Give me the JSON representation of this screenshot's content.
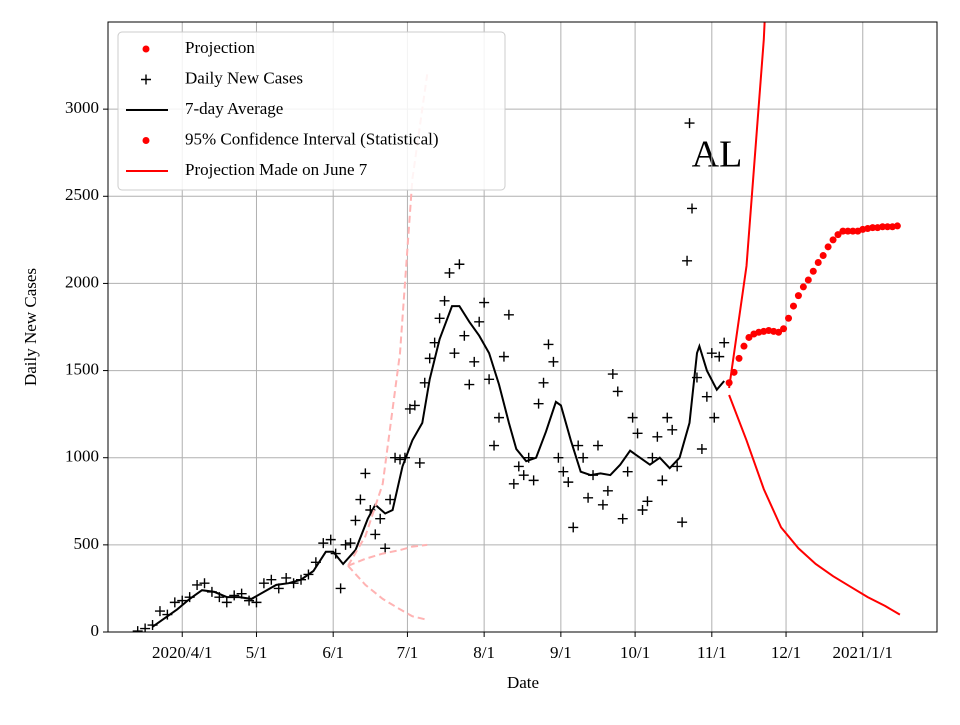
{
  "chart_data": {
    "type": "scatter",
    "xlabel": "Date",
    "ylabel": "Daily New Cases",
    "annotation": "AL",
    "xlim": [
      "2020-03-02",
      "2021-01-31"
    ],
    "xticks": [
      {
        "value": "2020-04-01",
        "label": "2020/4/1"
      },
      {
        "value": "2020-05-01",
        "label": "5/1"
      },
      {
        "value": "2020-06-01",
        "label": "6/1"
      },
      {
        "value": "2020-07-01",
        "label": "7/1"
      },
      {
        "value": "2020-08-01",
        "label": "8/1"
      },
      {
        "value": "2020-09-01",
        "label": "9/1"
      },
      {
        "value": "2020-10-01",
        "label": "10/1"
      },
      {
        "value": "2020-11-01",
        "label": "11/1"
      },
      {
        "value": "2020-12-01",
        "label": "12/1"
      },
      {
        "value": "2021-01-01",
        "label": "2021/1/1"
      }
    ],
    "ylim": [
      0,
      3500
    ],
    "yticks": [
      0,
      500,
      1000,
      1500,
      2000,
      2500,
      3000
    ],
    "grid": true,
    "legend": "upper left",
    "series": [
      {
        "name": "Projection",
        "color": "#ff0000",
        "marker": "dot",
        "x": [
          "2020-11-08",
          "2020-11-10",
          "2020-11-12",
          "2020-11-14",
          "2020-11-16",
          "2020-11-18",
          "2020-11-20",
          "2020-11-22",
          "2020-11-24",
          "2020-11-26",
          "2020-11-28",
          "2020-11-30",
          "2020-12-02",
          "2020-12-04",
          "2020-12-06",
          "2020-12-08",
          "2020-12-10",
          "2020-12-12",
          "2020-12-14",
          "2020-12-16",
          "2020-12-18",
          "2020-12-20",
          "2020-12-22",
          "2020-12-24",
          "2020-12-26",
          "2020-12-28",
          "2020-12-30",
          "2021-01-01",
          "2021-01-03",
          "2021-01-05",
          "2021-01-07",
          "2021-01-09",
          "2021-01-11",
          "2021-01-13",
          "2021-01-15"
        ],
        "values": [
          1430,
          1490,
          1570,
          1640,
          1690,
          1710,
          1720,
          1725,
          1730,
          1725,
          1720,
          1740,
          1800,
          1870,
          1930,
          1980,
          2020,
          2070,
          2120,
          2160,
          2210,
          2250,
          2280,
          2300,
          2300,
          2300,
          2300,
          2310,
          2315,
          2320,
          2320,
          2325,
          2325,
          2325,
          2330
        ]
      },
      {
        "name": "Daily New Cases",
        "color": "#000000",
        "marker": "plus",
        "x": [
          "2020-03-14",
          "2020-03-17",
          "2020-03-20",
          "2020-03-23",
          "2020-03-26",
          "2020-03-29",
          "2020-04-01",
          "2020-04-04",
          "2020-04-07",
          "2020-04-10",
          "2020-04-13",
          "2020-04-16",
          "2020-04-19",
          "2020-04-22",
          "2020-04-25",
          "2020-04-28",
          "2020-05-01",
          "2020-05-04",
          "2020-05-07",
          "2020-05-10",
          "2020-05-13",
          "2020-05-16",
          "2020-05-19",
          "2020-05-22",
          "2020-05-25",
          "2020-05-28",
          "2020-05-31",
          "2020-06-02",
          "2020-06-04",
          "2020-06-06",
          "2020-06-08",
          "2020-06-10",
          "2020-06-12",
          "2020-06-14",
          "2020-06-16",
          "2020-06-18",
          "2020-06-20",
          "2020-06-22",
          "2020-06-24",
          "2020-06-26",
          "2020-06-28",
          "2020-06-30",
          "2020-07-02",
          "2020-07-04",
          "2020-07-06",
          "2020-07-08",
          "2020-07-10",
          "2020-07-12",
          "2020-07-14",
          "2020-07-16",
          "2020-07-18",
          "2020-07-20",
          "2020-07-22",
          "2020-07-24",
          "2020-07-26",
          "2020-07-28",
          "2020-07-30",
          "2020-08-01",
          "2020-08-03",
          "2020-08-05",
          "2020-08-07",
          "2020-08-09",
          "2020-08-11",
          "2020-08-13",
          "2020-08-15",
          "2020-08-17",
          "2020-08-19",
          "2020-08-21",
          "2020-08-23",
          "2020-08-25",
          "2020-08-27",
          "2020-08-29",
          "2020-08-31",
          "2020-09-02",
          "2020-09-04",
          "2020-09-06",
          "2020-09-08",
          "2020-09-10",
          "2020-09-12",
          "2020-09-14",
          "2020-09-16",
          "2020-09-18",
          "2020-09-20",
          "2020-09-22",
          "2020-09-24",
          "2020-09-26",
          "2020-09-28",
          "2020-09-30",
          "2020-10-02",
          "2020-10-04",
          "2020-10-06",
          "2020-10-08",
          "2020-10-10",
          "2020-10-12",
          "2020-10-14",
          "2020-10-16",
          "2020-10-18",
          "2020-10-20",
          "2020-10-22",
          "2020-10-23",
          "2020-10-24",
          "2020-10-26",
          "2020-10-28",
          "2020-10-30",
          "2020-11-01",
          "2020-11-02",
          "2020-11-04",
          "2020-11-06"
        ],
        "values": [
          5,
          20,
          40,
          120,
          100,
          170,
          180,
          200,
          270,
          280,
          230,
          200,
          170,
          210,
          220,
          180,
          170,
          280,
          300,
          250,
          310,
          280,
          300,
          330,
          400,
          510,
          530,
          450,
          250,
          500,
          510,
          640,
          760,
          910,
          700,
          560,
          650,
          480,
          760,
          1000,
          990,
          1000,
          1280,
          1300,
          970,
          1430,
          1570,
          1660,
          1800,
          1900,
          2060,
          1600,
          2110,
          1700,
          1420,
          1550,
          1780,
          1890,
          1450,
          1070,
          1230,
          1580,
          1820,
          850,
          950,
          900,
          1000,
          870,
          1310,
          1430,
          1650,
          1550,
          1000,
          920,
          860,
          600,
          1070,
          1000,
          770,
          900,
          1070,
          730,
          810,
          1480,
          1380,
          650,
          920,
          1230,
          1140,
          700,
          750,
          1000,
          1120,
          870,
          1230,
          1160,
          950,
          630,
          2130,
          2920,
          2430,
          1460,
          1050,
          1350,
          1600,
          1230,
          1580,
          1660
        ]
      },
      {
        "name": "7-day Average",
        "color": "#000000",
        "marker": "line",
        "x": [
          "2020-03-20",
          "2020-03-25",
          "2020-03-30",
          "2020-04-04",
          "2020-04-09",
          "2020-04-14",
          "2020-04-19",
          "2020-04-24",
          "2020-04-29",
          "2020-05-04",
          "2020-05-09",
          "2020-05-14",
          "2020-05-19",
          "2020-05-24",
          "2020-05-29",
          "2020-06-01",
          "2020-06-05",
          "2020-06-10",
          "2020-06-15",
          "2020-06-18",
          "2020-06-22",
          "2020-06-25",
          "2020-06-29",
          "2020-07-03",
          "2020-07-07",
          "2020-07-10",
          "2020-07-14",
          "2020-07-19",
          "2020-07-22",
          "2020-07-26",
          "2020-07-30",
          "2020-08-03",
          "2020-08-07",
          "2020-08-11",
          "2020-08-14",
          "2020-08-18",
          "2020-08-22",
          "2020-08-26",
          "2020-08-30",
          "2020-09-01",
          "2020-09-05",
          "2020-09-09",
          "2020-09-13",
          "2020-09-17",
          "2020-09-21",
          "2020-09-25",
          "2020-09-29",
          "2020-10-03",
          "2020-10-07",
          "2020-10-11",
          "2020-10-15",
          "2020-10-19",
          "2020-10-23",
          "2020-10-26",
          "2020-10-27",
          "2020-10-30",
          "2020-11-03",
          "2020-11-06"
        ],
        "values": [
          30,
          80,
          130,
          190,
          240,
          230,
          200,
          200,
          190,
          230,
          270,
          280,
          300,
          350,
          460,
          460,
          390,
          470,
          650,
          730,
          680,
          700,
          950,
          1100,
          1200,
          1450,
          1680,
          1870,
          1870,
          1780,
          1700,
          1600,
          1420,
          1200,
          1050,
          980,
          1000,
          1150,
          1320,
          1300,
          1100,
          920,
          900,
          910,
          900,
          960,
          1040,
          1000,
          960,
          1000,
          940,
          1000,
          1200,
          1600,
          1640,
          1500,
          1390,
          1440
        ]
      },
      {
        "name": "95% Confidence Interval (Statistical)",
        "color": "#ff0000",
        "marker": "dot",
        "line": "solid",
        "x": [
          "2020-11-08",
          "2020-11-15",
          "2020-11-22",
          "2020-11-29",
          "2020-12-06",
          "2020-12-13",
          "2020-12-20",
          "2020-12-27",
          "2021-01-03",
          "2021-01-10",
          "2021-01-16"
        ],
        "upper": [
          1400,
          2100,
          3400,
          5500,
          null,
          null,
          null,
          null,
          null,
          null,
          null
        ],
        "lower": [
          1360,
          1100,
          820,
          600,
          480,
          390,
          320,
          260,
          200,
          150,
          100
        ]
      },
      {
        "name": "Projection Made on June 7",
        "color": "#ff0000",
        "marker": "line",
        "line": "dashed",
        "line_color": "#ffb3b3",
        "x": [
          "2020-06-07",
          "2020-06-14",
          "2020-06-21",
          "2020-06-28",
          "2020-07-03",
          "2020-07-09"
        ],
        "values": [
          380,
          420,
          450,
          470,
          490,
          500
        ],
        "upper": [
          380,
          550,
          850,
          1600,
          2600,
          3200
        ],
        "lower": [
          380,
          270,
          190,
          130,
          90,
          70
        ]
      }
    ]
  }
}
